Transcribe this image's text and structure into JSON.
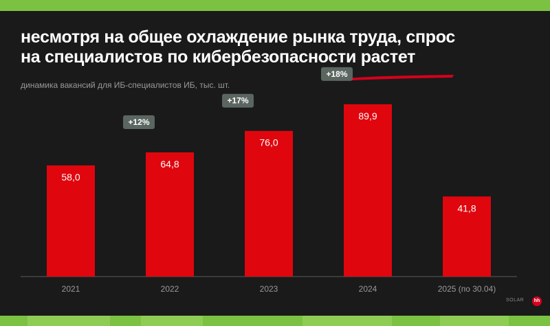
{
  "title_line1": "несмотря на общее охлаждение рынка труда, спрос",
  "title_line2": "на специалистов по кибербезопасности растет",
  "subtitle": "динамика вакансий для ИБ-специалистов ИБ, тыс. шт.",
  "logos": {
    "solar": "SOLAR",
    "hh": "hh"
  },
  "colors": {
    "bar": "#e0060e",
    "badge": "#5b6660",
    "background": "#1a1a1a",
    "frame": "#7cc242",
    "underline": "#d6001c"
  },
  "chart_data": {
    "type": "bar",
    "title": "несмотря на общее охлаждение рынка труда, спрос на специалистов по кибербезопасности растет",
    "subtitle": "динамика вакансий для ИБ-специалистов ИБ, тыс. шт.",
    "categories": [
      "2021",
      "2022",
      "2023",
      "2024",
      "2025 (по 30.04)"
    ],
    "values": [
      58.0,
      64.8,
      76.0,
      89.9,
      41.8
    ],
    "data_labels": [
      "58,0",
      "64,8",
      "76,0",
      "89,9",
      "41,8"
    ],
    "growth_badges": [
      "",
      "+12%",
      "+17%",
      "+18%",
      ""
    ],
    "ylim": [
      0,
      100
    ],
    "grid": false,
    "legend": "none"
  }
}
